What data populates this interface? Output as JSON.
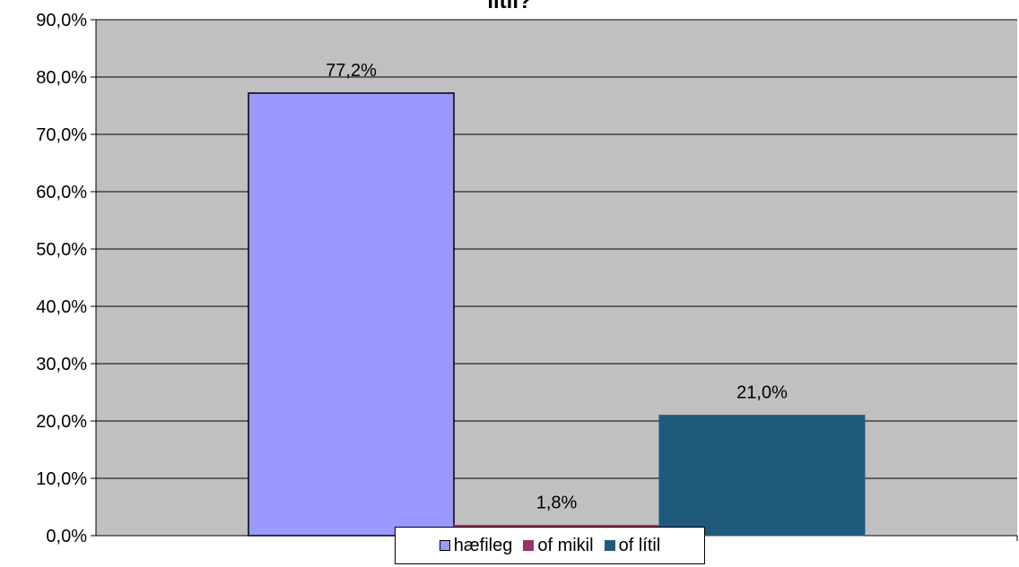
{
  "chart_data": {
    "type": "bar",
    "title": "litil?",
    "categories": [
      ""
    ],
    "series": [
      {
        "name": "hæfileg",
        "values": [
          77.2
        ],
        "color": "#9999FF",
        "label": "77,2%"
      },
      {
        "name": "of mikil",
        "values": [
          1.8
        ],
        "color": "#993366",
        "label": "1,8%"
      },
      {
        "name": "of lítil",
        "values": [
          21.0
        ],
        "color": "#1F5A7D",
        "label": "21,0%"
      }
    ],
    "ylim": [
      0,
      90
    ],
    "yticks": [
      0,
      10,
      20,
      30,
      40,
      50,
      60,
      70,
      80,
      90
    ],
    "ytick_labels": [
      "0,0%",
      "10,0%",
      "20,0%",
      "30,0%",
      "40,0%",
      "50,0%",
      "60,0%",
      "70,0%",
      "80,0%",
      "90,0%"
    ],
    "grid": true,
    "plot_background": "#C0C0C0",
    "legend_position": "bottom"
  }
}
